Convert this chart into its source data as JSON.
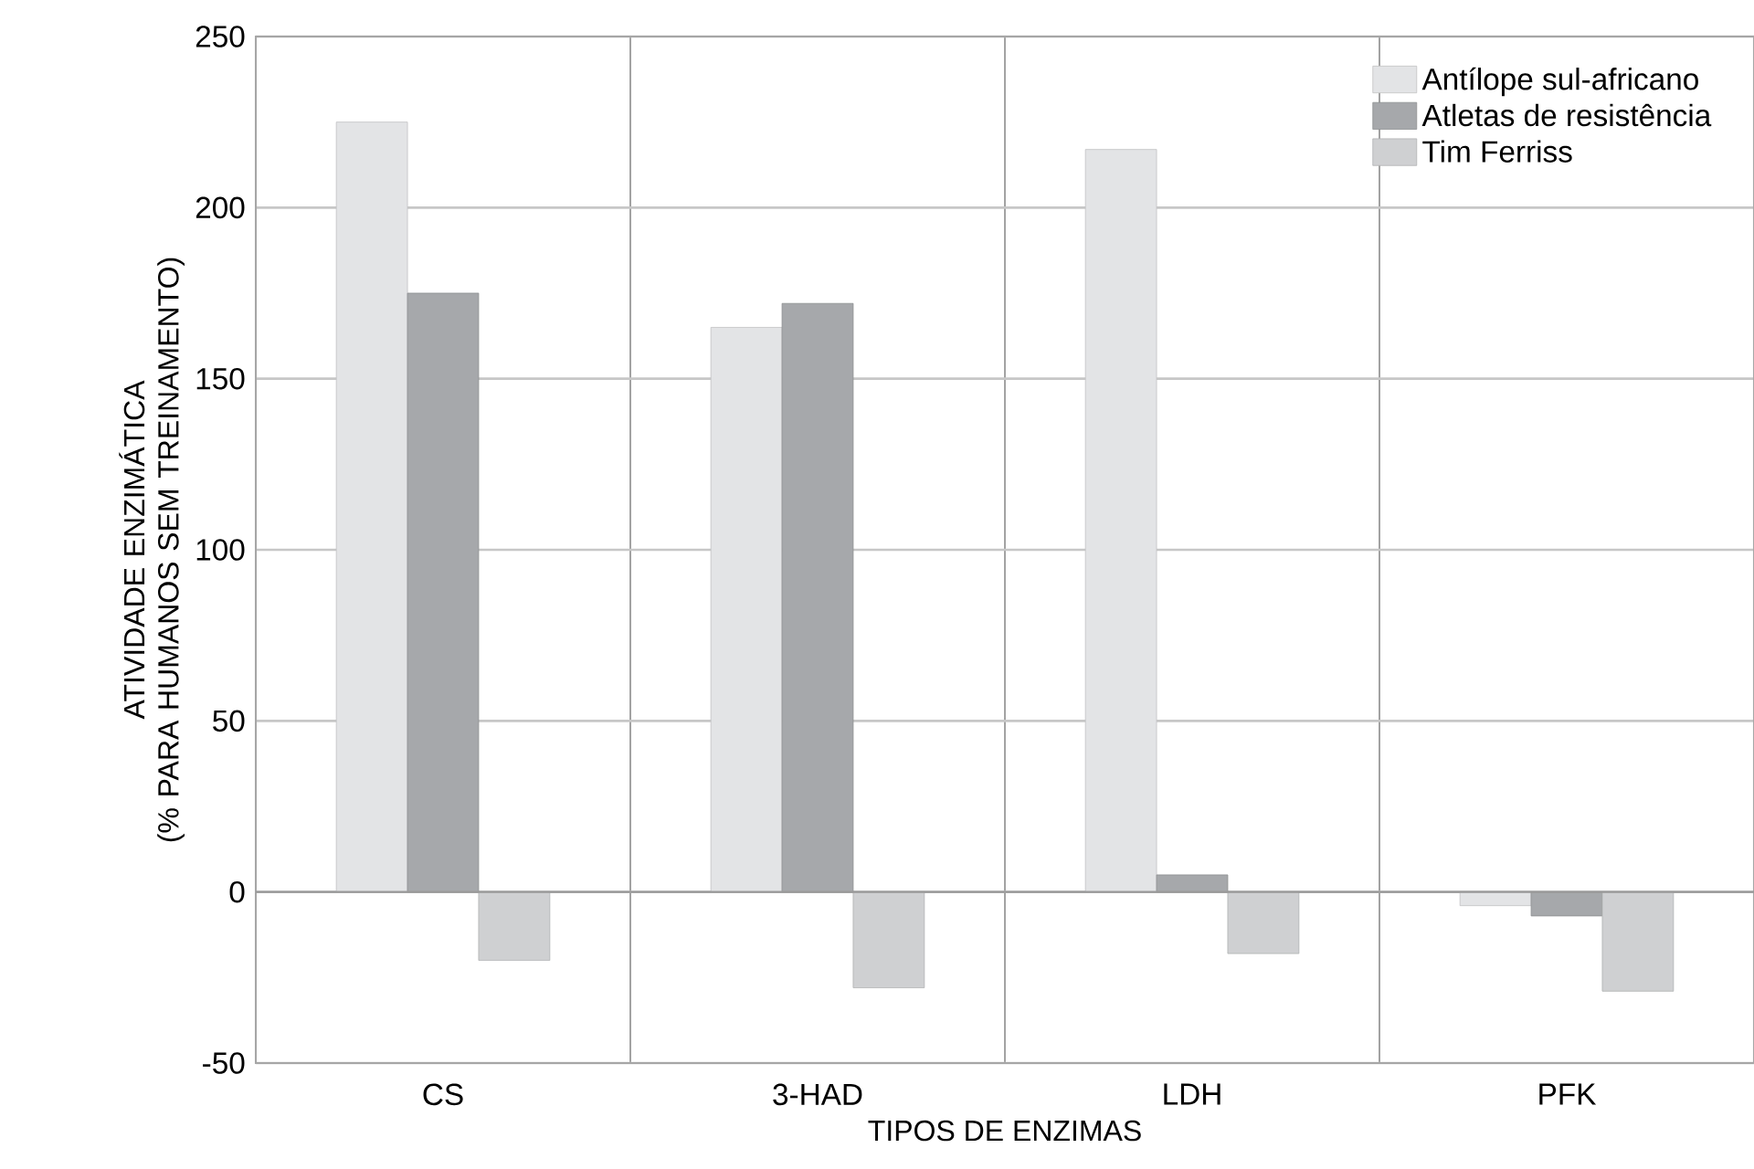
{
  "chart_data": {
    "type": "bar",
    "xlabel": "TIPOS DE ENZIMAS",
    "ylabel": "ATIVIDADE ENZIMÁTICA\n(% PARA HUMANOS SEM TREINAMENTO)",
    "categories": [
      "CS",
      "3-HAD",
      "LDH",
      "PFK"
    ],
    "series": [
      {
        "name": "Antílope sul-africano",
        "color": "#e3e4e6",
        "values": [
          225,
          165,
          217,
          -4
        ]
      },
      {
        "name": "Atletas de resistência",
        "color": "#a6a8ab",
        "values": [
          175,
          172,
          5,
          -7
        ]
      },
      {
        "name": "Tim Ferriss",
        "color": "#cfd0d2",
        "values": [
          -20,
          -28,
          -18,
          -29
        ]
      }
    ],
    "ylim": [
      -50,
      250
    ],
    "yticks": [
      -50,
      0,
      50,
      100,
      150,
      200,
      250
    ],
    "grid": true,
    "legend": "top right"
  }
}
